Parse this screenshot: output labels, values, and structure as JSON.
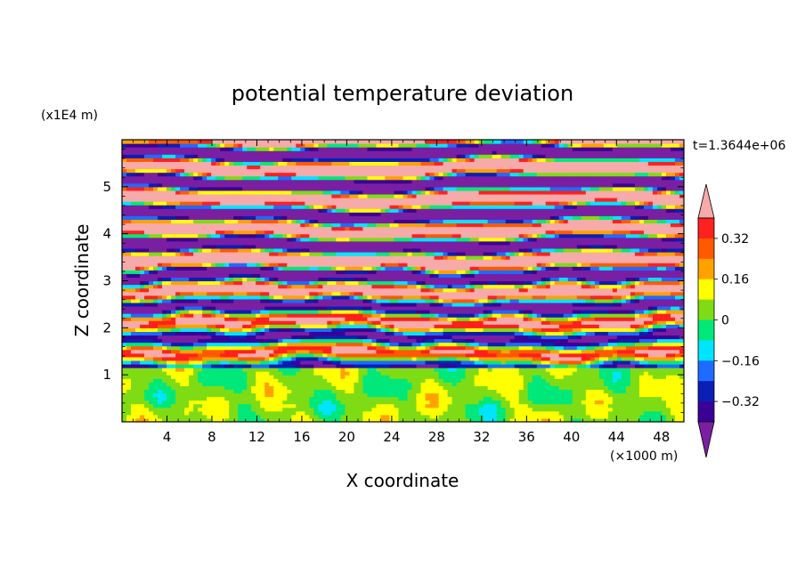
{
  "chart_data": {
    "type": "heatmap",
    "title": "potential temperature deviation",
    "time_label": "t=1.3644e+06",
    "xlabel": "X coordinate",
    "ylabel": "Z coordinate",
    "x_unit_label": "(×1000 m)",
    "y_unit_label": "(x1E4 m)",
    "xlim": [
      0,
      50
    ],
    "ylim": [
      0,
      6
    ],
    "x_ticks": [
      4,
      8,
      12,
      16,
      20,
      24,
      28,
      32,
      36,
      40,
      44,
      48
    ],
    "y_ticks": [
      1,
      2,
      3,
      4,
      5
    ],
    "colorbar": {
      "levels": [
        -0.4,
        -0.32,
        -0.24,
        -0.16,
        -0.08,
        0,
        0.08,
        0.16,
        0.24,
        0.32,
        0.4
      ],
      "tick_labels": [
        "0.32",
        "0.16",
        "0",
        "−0.16",
        "−0.32"
      ],
      "tick_values": [
        0.32,
        0.16,
        0,
        -0.16,
        -0.32
      ],
      "colors": [
        "#7a1fa2",
        "#3b0096",
        "#0a1fb5",
        "#1e6bff",
        "#00e5ff",
        "#00e87a",
        "#7fdc14",
        "#ffff00",
        "#ffa200",
        "#ff5a00",
        "#ff2020",
        "#f7aaaa"
      ],
      "extend": "both"
    },
    "colors": {
      "high": "#f7aaaa",
      "low": "#6a1b9a",
      "near_zero": "#00e87a"
    }
  }
}
